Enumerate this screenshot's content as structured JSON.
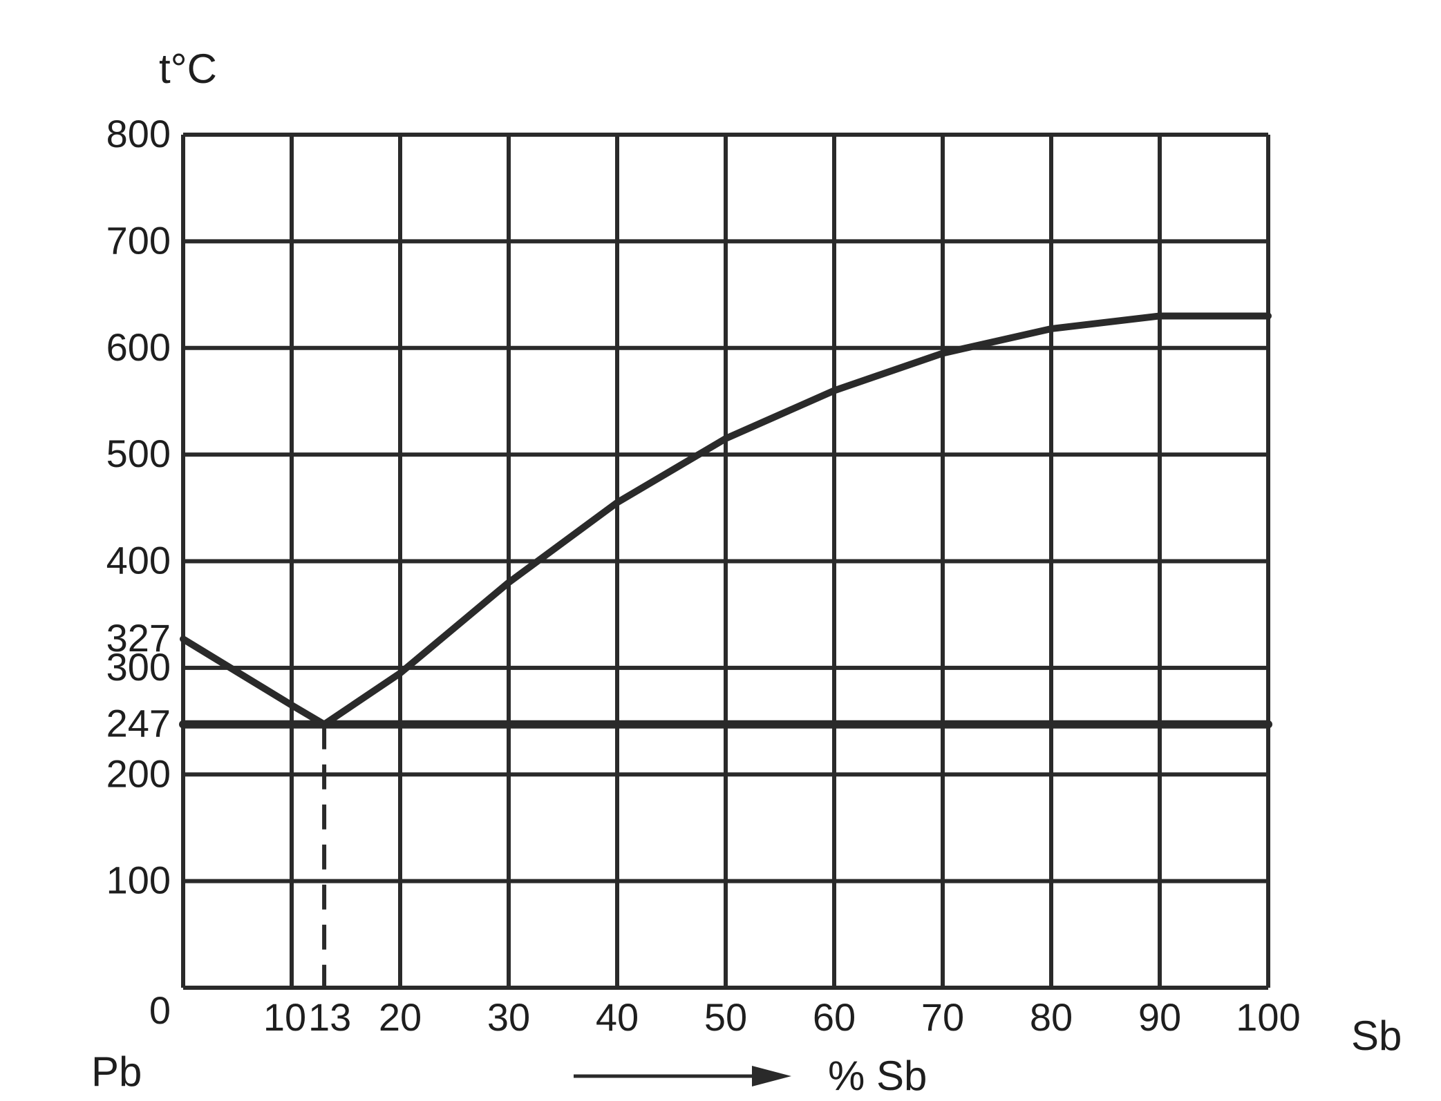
{
  "chart_data": {
    "type": "line",
    "ylabel": "t°C",
    "ylim": [
      0,
      800
    ],
    "xlim": [
      0,
      100
    ],
    "y_ticks": [
      "0",
      "100",
      "200",
      "247",
      "300",
      "327",
      "400",
      "500",
      "600",
      "700",
      "800"
    ],
    "y_tick_values": [
      0,
      100,
      200,
      247,
      300,
      327,
      400,
      500,
      600,
      700,
      800
    ],
    "x_ticks": [
      "10",
      "13",
      "20",
      "30",
      "40",
      "50",
      "60",
      "70",
      "80",
      "90",
      "100"
    ],
    "x_tick_values": [
      10,
      13,
      20,
      30,
      40,
      50,
      60,
      70,
      80,
      90,
      100
    ],
    "x_grid": [
      0,
      10,
      20,
      30,
      40,
      50,
      60,
      70,
      80,
      90,
      100
    ],
    "y_grid": [
      0,
      100,
      200,
      300,
      400,
      500,
      600,
      700,
      800
    ],
    "left_end_label": "Pb",
    "right_end_label": "Sb",
    "xlabel": "% Sb",
    "grid": true,
    "series": [
      {
        "values": [
          [
            0,
            327
          ],
          [
            5,
            296
          ],
          [
            10,
            265
          ],
          [
            13,
            247
          ]
        ]
      },
      {
        "values": [
          [
            13,
            247
          ],
          [
            20,
            295
          ],
          [
            30,
            380
          ],
          [
            40,
            455
          ],
          [
            50,
            515
          ],
          [
            60,
            560
          ],
          [
            70,
            595
          ],
          [
            80,
            618
          ],
          [
            90,
            630
          ],
          [
            100,
            630
          ]
        ]
      },
      {
        "values": [
          [
            0,
            247
          ],
          [
            100,
            247
          ]
        ]
      }
    ],
    "eutectic": {
      "x": 13,
      "y": 247
    }
  }
}
